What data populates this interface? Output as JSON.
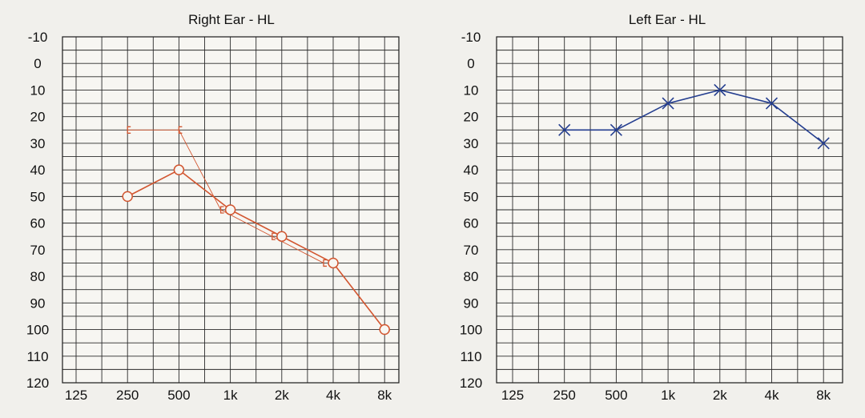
{
  "chart_data": [
    {
      "type": "line",
      "title": "Right Ear - HL",
      "xlabel": "",
      "ylabel": "",
      "x_ticks": [
        "125",
        "250",
        "500",
        "1k",
        "2k",
        "4k",
        "8k"
      ],
      "y_ticks": [
        -10,
        0,
        10,
        20,
        30,
        40,
        50,
        60,
        70,
        80,
        90,
        100,
        110,
        120
      ],
      "ylim": [
        120,
        -10
      ],
      "grid": true,
      "legend": "none",
      "series": [
        {
          "marker": "circle",
          "color": "#d2552f",
          "points": [
            {
              "x": "250",
              "y": 50
            },
            {
              "x": "500",
              "y": 40
            },
            {
              "x": "1k",
              "y": 55
            },
            {
              "x": "2k",
              "y": 65
            },
            {
              "x": "4k",
              "y": 75
            },
            {
              "x": "8k",
              "y": 100
            }
          ]
        },
        {
          "marker": "bracket-left",
          "color": "#d2552f",
          "points": [
            {
              "x": "250",
              "y": 25
            },
            {
              "x": "500",
              "y": 25
            },
            {
              "x": "1k",
              "y": 55
            },
            {
              "x": "2k",
              "y": 65
            },
            {
              "x": "4k",
              "y": 75
            }
          ]
        }
      ]
    },
    {
      "type": "line",
      "title": "Left Ear - HL",
      "xlabel": "",
      "ylabel": "",
      "x_ticks": [
        "125",
        "250",
        "500",
        "1k",
        "2k",
        "4k",
        "8k"
      ],
      "y_ticks": [
        -10,
        0,
        10,
        20,
        30,
        40,
        50,
        60,
        70,
        80,
        90,
        100,
        110,
        120
      ],
      "ylim": [
        120,
        -10
      ],
      "grid": true,
      "legend": "none",
      "series": [
        {
          "marker": "cross",
          "color": "#233d8f",
          "points": [
            {
              "x": "250",
              "y": 25
            },
            {
              "x": "500",
              "y": 25
            },
            {
              "x": "1k",
              "y": 15
            },
            {
              "x": "2k",
              "y": 10
            },
            {
              "x": "4k",
              "y": 15
            },
            {
              "x": "8k",
              "y": 30
            }
          ]
        }
      ]
    }
  ]
}
